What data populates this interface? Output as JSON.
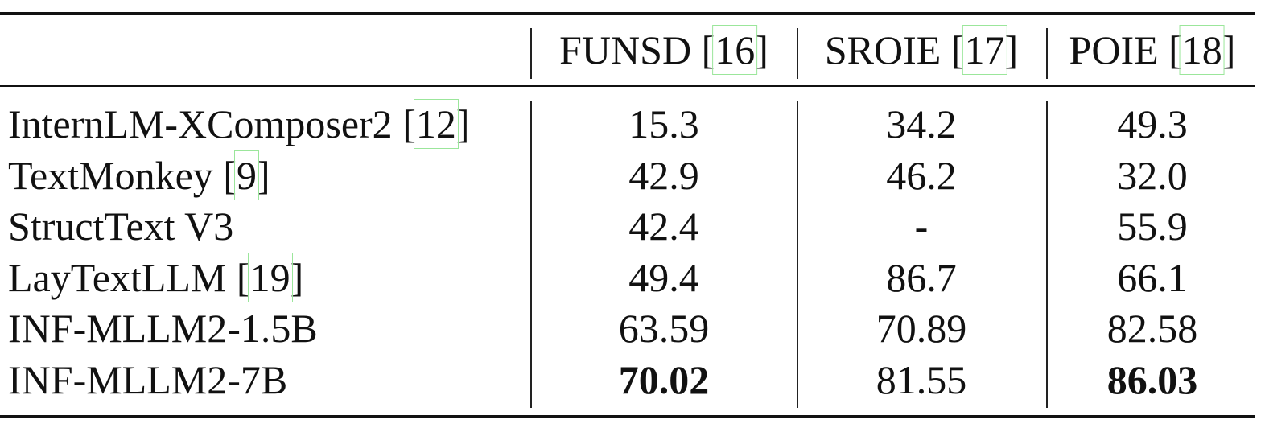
{
  "table": {
    "headers": [
      {
        "name": "FUNSD",
        "cite": "16"
      },
      {
        "name": "SROIE",
        "cite": "17"
      },
      {
        "name": "POIE",
        "cite": "18"
      }
    ],
    "rows": [
      {
        "model": "InternLM-XComposer2",
        "cite": "12",
        "values": [
          "15.3",
          "34.2",
          "49.3"
        ],
        "bold": [
          false,
          false,
          false
        ]
      },
      {
        "model": "TextMonkey",
        "cite": "9",
        "values": [
          "42.9",
          "46.2",
          "32.0"
        ],
        "bold": [
          false,
          false,
          false
        ]
      },
      {
        "model": "StructText V3",
        "cite": null,
        "values": [
          "42.4",
          "-",
          "55.9"
        ],
        "bold": [
          false,
          false,
          false
        ]
      },
      {
        "model": "LayTextLLM",
        "cite": "19",
        "values": [
          "49.4",
          "86.7",
          "66.1"
        ],
        "bold": [
          false,
          false,
          false
        ]
      },
      {
        "model": "INF-MLLM2-1.5B",
        "cite": null,
        "values": [
          "63.59",
          "70.89",
          "82.58"
        ],
        "bold": [
          false,
          false,
          false
        ]
      },
      {
        "model": "INF-MLLM2-7B",
        "cite": null,
        "values": [
          "70.02",
          "81.55",
          "86.03"
        ],
        "bold": [
          true,
          false,
          true
        ]
      }
    ]
  },
  "colors": {
    "citation_box": "#9be69b"
  }
}
